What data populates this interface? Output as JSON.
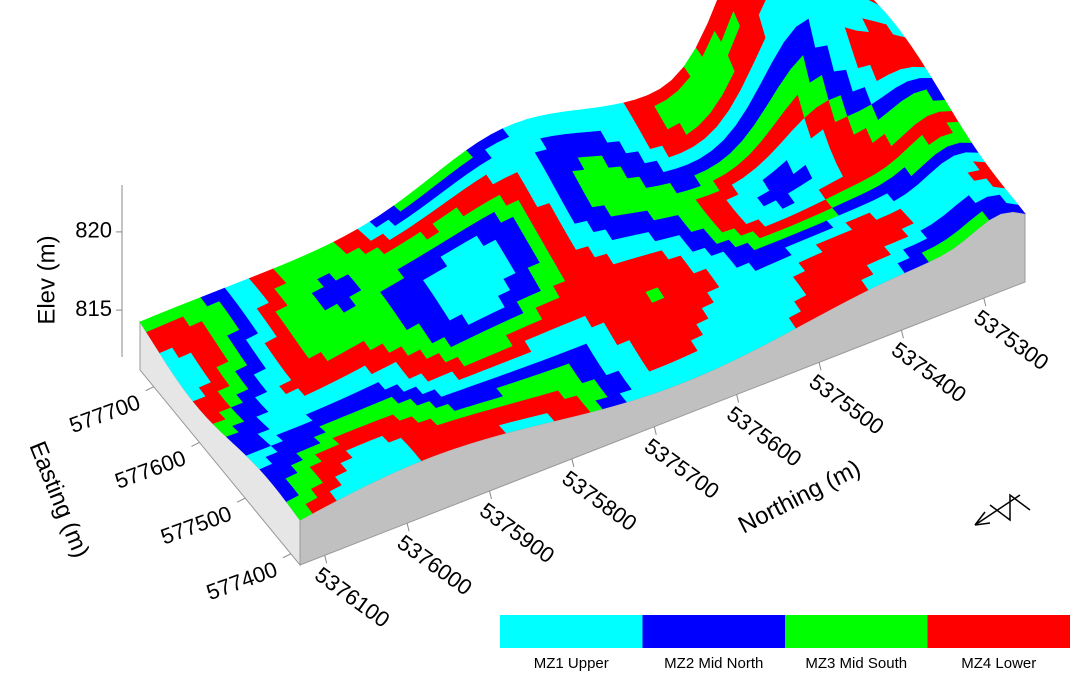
{
  "chart_data": {
    "type": "surface3d",
    "x_label": "Northing (m)",
    "y_label": "Easting (m)",
    "z_label": "Elev (m)",
    "xlim": [
      5376130,
      5375250
    ],
    "xticks": [
      5376100,
      5376000,
      5375900,
      5375800,
      5375700,
      5375600,
      5375500,
      5375400,
      5375300
    ],
    "ylim": [
      577380,
      577730
    ],
    "yticks": [
      577400,
      577500,
      577600,
      577700
    ],
    "zlim": [
      812,
      823
    ],
    "zticks": [
      815,
      820
    ],
    "zones": [
      {
        "name": "MZ1 Upper",
        "color": "#00ffff"
      },
      {
        "name": "MZ2 Mid North",
        "color": "#0000ff"
      },
      {
        "name": "MZ3 Mid South",
        "color": "#00ff00"
      },
      {
        "name": "MZ4 Lower",
        "color": "#ff0000"
      }
    ]
  }
}
